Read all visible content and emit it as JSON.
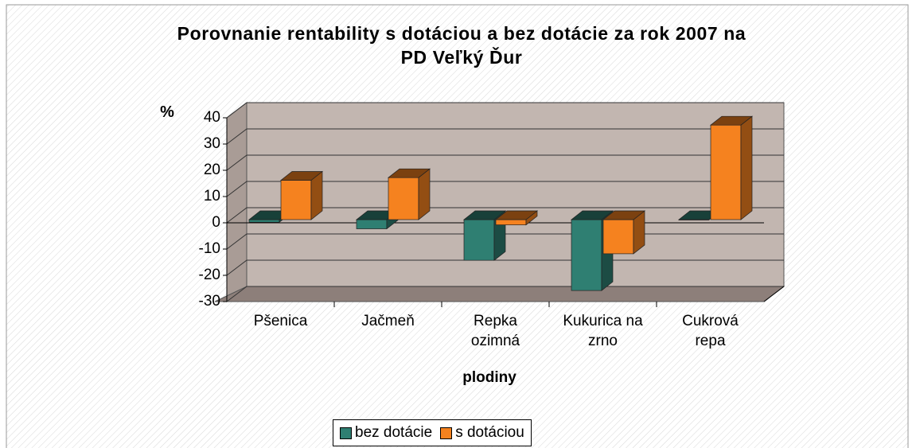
{
  "chart_data": {
    "type": "bar",
    "title": "Porovnanie rentability s dotáciou a bez dotácie za rok 2007 na\nPD Veľký Ďur",
    "y_label": "%",
    "x_label": "plodiny",
    "categories": [
      "Pšenica",
      "Jačmeň",
      "Repka\nozimná",
      "Kukurica na\nzrno",
      "Cukrová\nrepa"
    ],
    "series": [
      {
        "name": "bez dotácie",
        "color": "#2f7f72",
        "values": [
          -1,
          -3.5,
          -15.5,
          -27,
          0
        ]
      },
      {
        "name": "s dotáciou",
        "color": "#f5821f",
        "values": [
          15,
          16,
          -2,
          -13,
          36
        ]
      }
    ],
    "ylim": [
      -30,
      40
    ],
    "yticks": [
      -30,
      -20,
      -10,
      0,
      10,
      20,
      30,
      40
    ],
    "grid": true,
    "legend": "bottom"
  }
}
